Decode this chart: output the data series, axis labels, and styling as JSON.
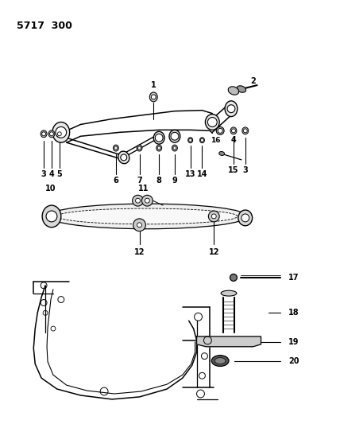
{
  "title": "5717  300",
  "bg_color": "#ffffff",
  "line_color": "#000000",
  "text_color": "#000000",
  "title_fontsize": 9,
  "label_fontsize": 7,
  "figsize": [
    4.28,
    5.33
  ],
  "dpi": 100
}
